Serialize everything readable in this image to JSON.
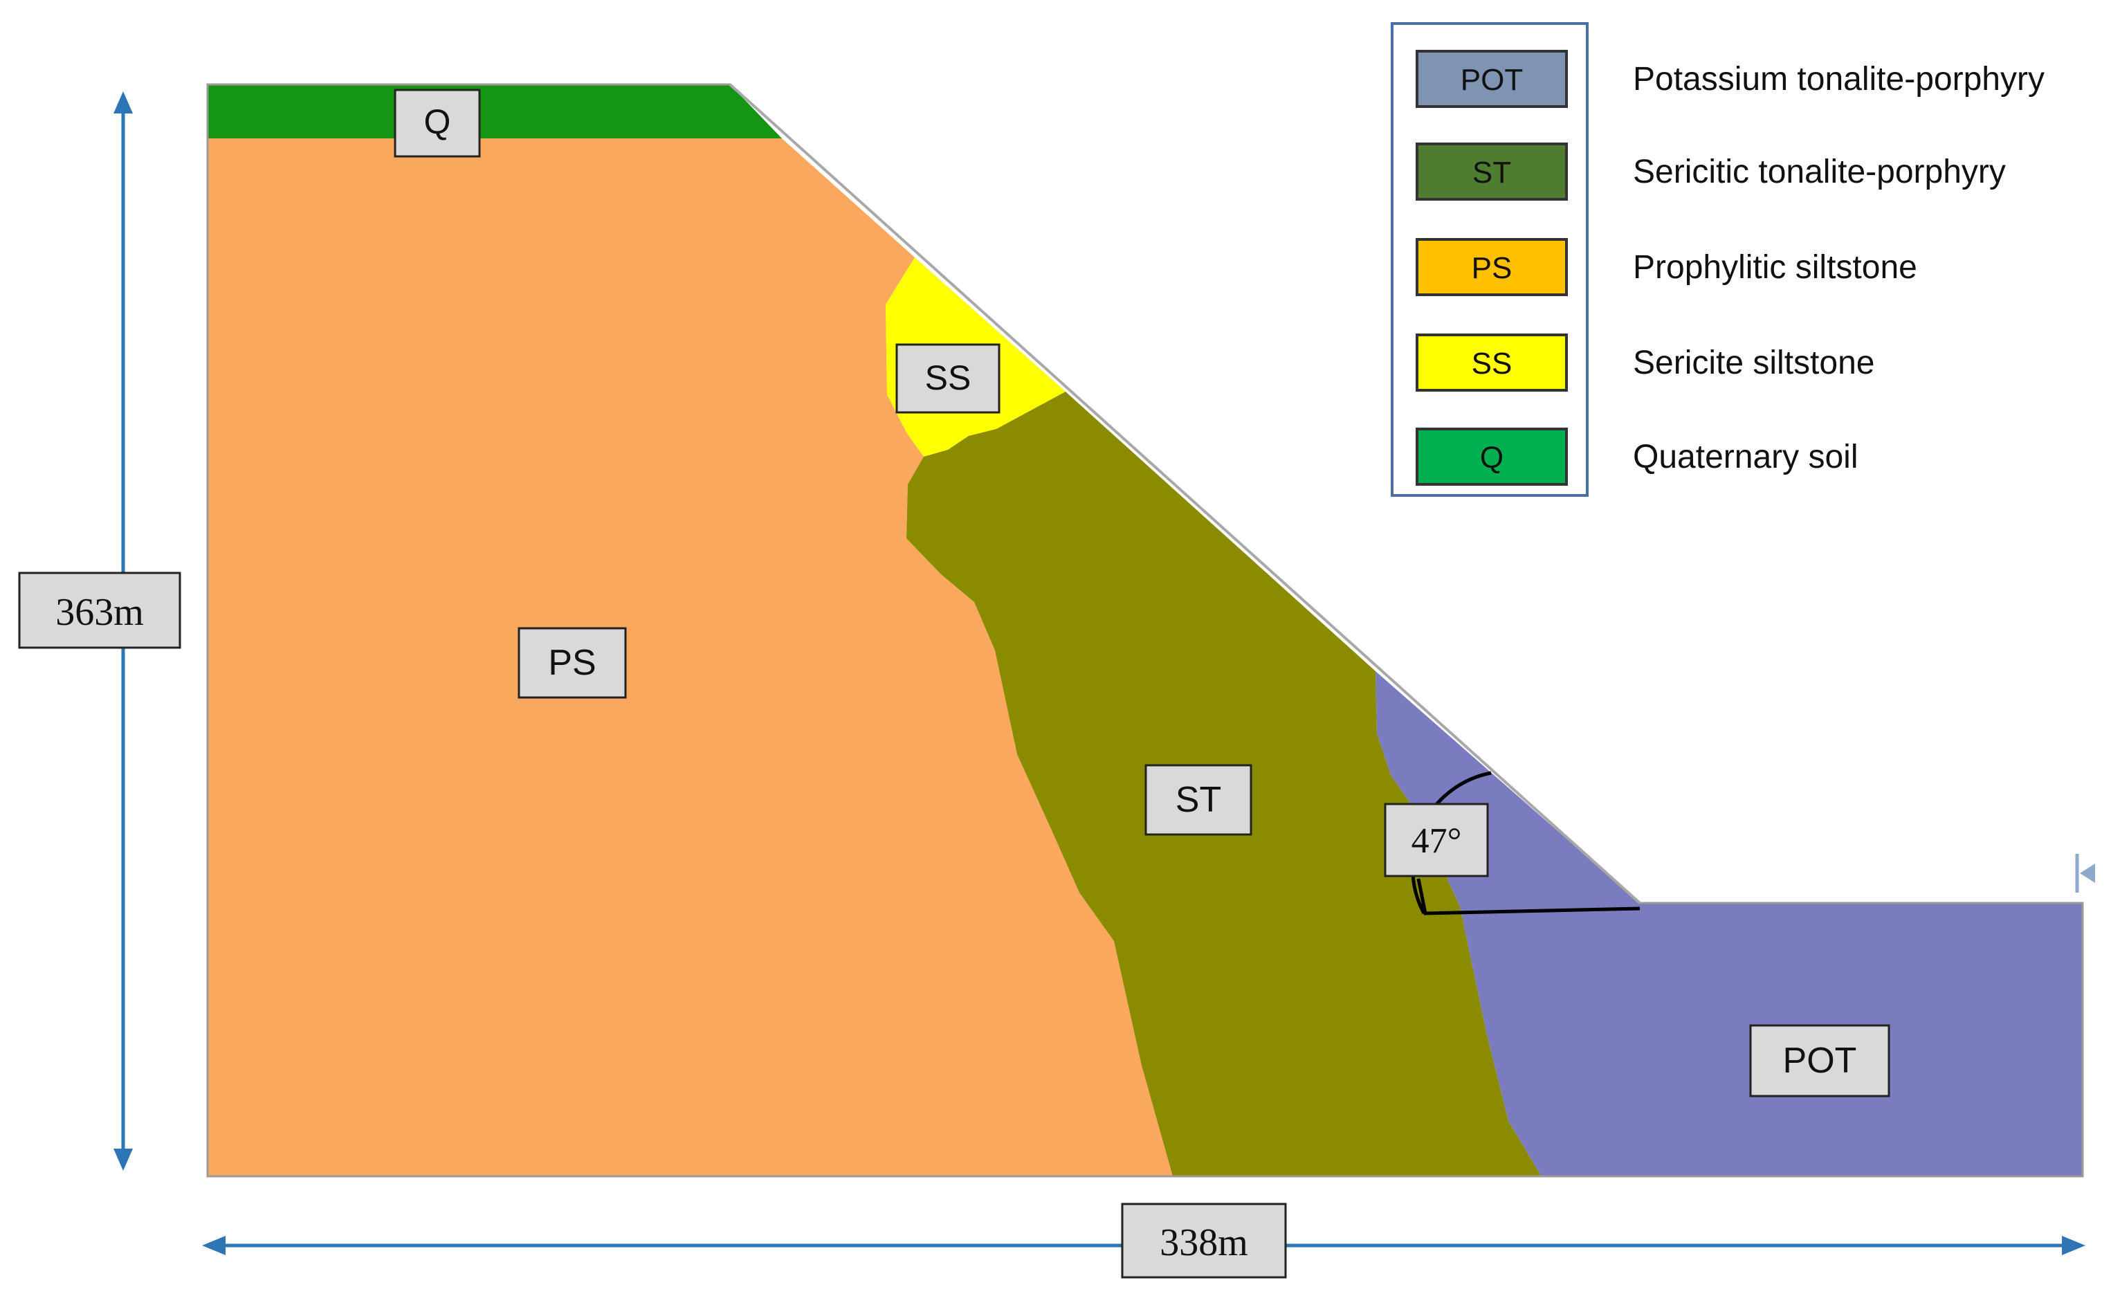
{
  "units": {
    "PS": {
      "label": "PS",
      "color": "#F9A85D"
    },
    "SS": {
      "label": "SS",
      "color": "#FFFF00"
    },
    "ST": {
      "label": "ST",
      "color": "#8B8B00"
    },
    "POT": {
      "label": "POT",
      "color": "#7B7BBF"
    },
    "Q": {
      "label": "Q",
      "color": "#149614"
    }
  },
  "dimensions": {
    "height_label": "363m",
    "width_label": "338m",
    "slope_angle_label": "47°",
    "arrow_color": "#2E75B6"
  },
  "legend": {
    "items": [
      {
        "code": "POT",
        "name": "Potassium tonalite-porphyry",
        "swatch": "#7F93B3"
      },
      {
        "code": "ST",
        "name": "Sericitic tonalite-porphyry",
        "swatch": "#4E7D30"
      },
      {
        "code": "PS",
        "name": "Prophylitic siltstone",
        "swatch": "#FFC000"
      },
      {
        "code": "SS",
        "name": "Sericite siltstone",
        "swatch": "#FFFF00"
      },
      {
        "code": "Q",
        "name": "Quaternary soil",
        "swatch": "#00B050"
      }
    ]
  }
}
